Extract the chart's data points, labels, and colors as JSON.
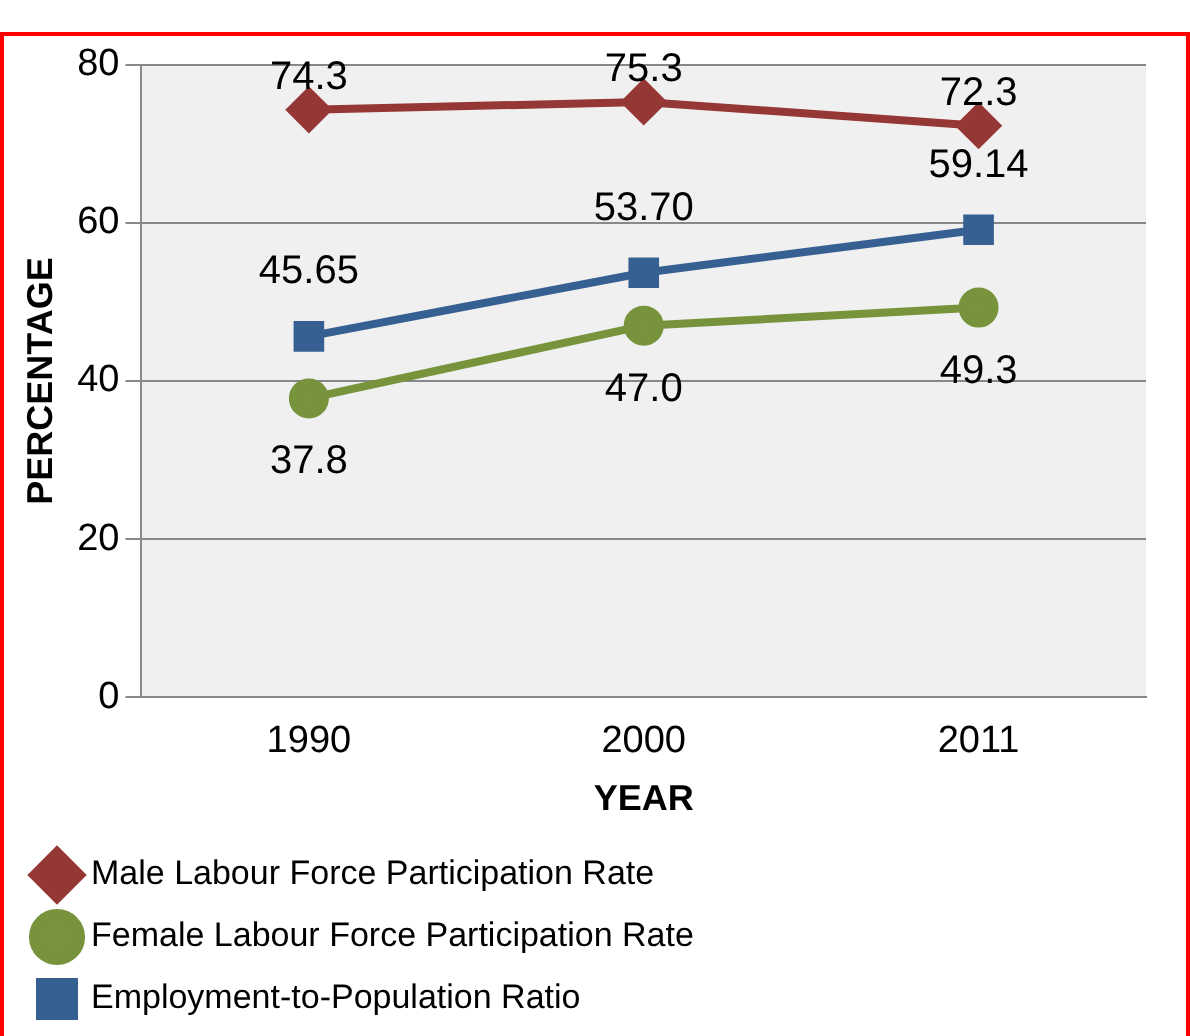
{
  "chart_data": {
    "type": "line",
    "xlabel": "YEAR",
    "ylabel": "PERCENTAGE",
    "categories": [
      "1990",
      "2000",
      "2011"
    ],
    "series": [
      {
        "name": "Male Labour Force Participation Rate",
        "color": "#953735",
        "marker": "diamond",
        "values": [
          74.3,
          75.3,
          72.3
        ],
        "value_labels": [
          "74.3",
          "75.3",
          "72.3"
        ]
      },
      {
        "name": "Female Labour Force Participation Rate",
        "color": "#77933c",
        "marker": "circle",
        "values": [
          37.8,
          47.0,
          49.3
        ],
        "value_labels": [
          "37.8",
          "47.0",
          "49.3"
        ]
      },
      {
        "name": "Employment-to-Population Ratio",
        "color": "#376092",
        "marker": "square",
        "values": [
          45.65,
          53.7,
          59.14
        ],
        "value_labels": [
          "45.65",
          "53.70",
          "59.14"
        ]
      }
    ],
    "ylim": [
      0,
      80
    ],
    "yticks": [
      0,
      20,
      40,
      60,
      80
    ],
    "grid": "y",
    "legend": "bottom"
  }
}
